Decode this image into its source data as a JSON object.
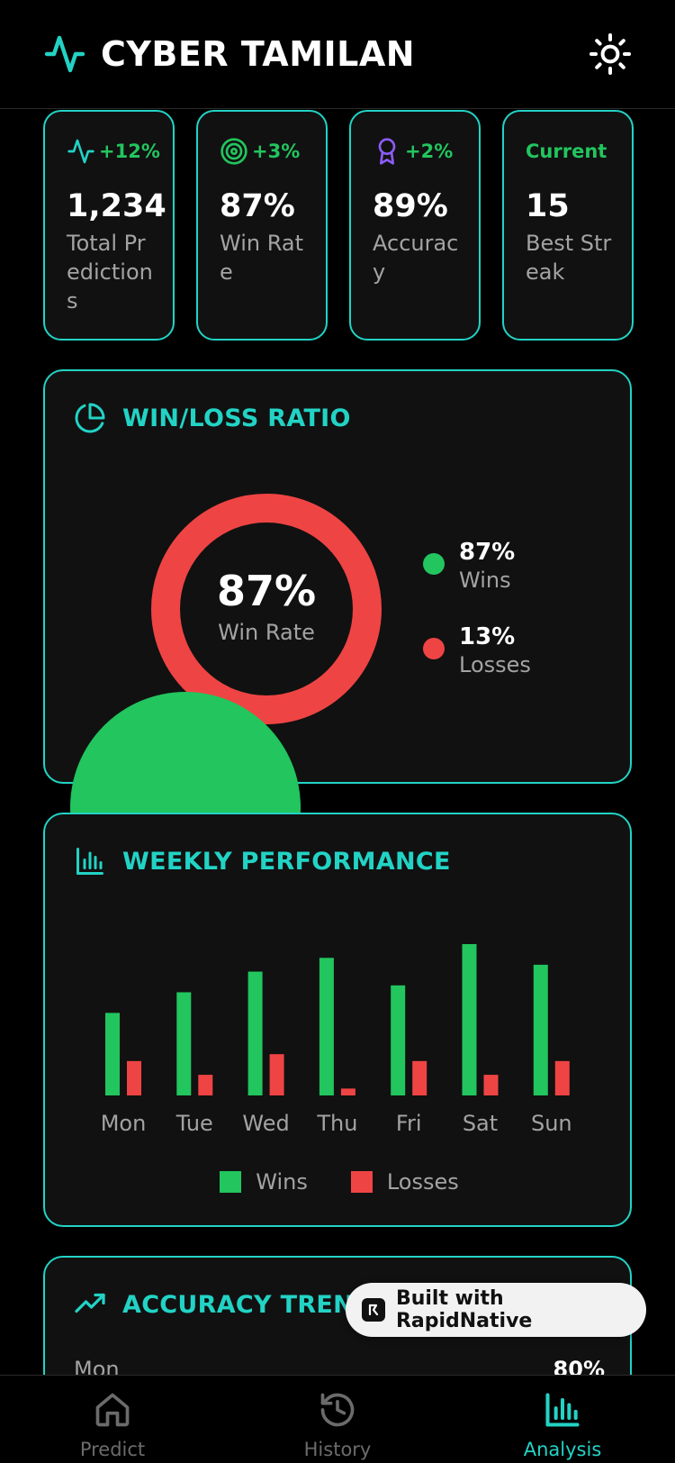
{
  "app": {
    "title": "CYBER TAMILAN"
  },
  "stats": [
    {
      "trend": "+12%",
      "value": "1,234",
      "label": "Total Predictions",
      "icon": "activity-icon"
    },
    {
      "trend": "+3%",
      "value": "87%",
      "label": "Win Rate",
      "icon": "target-icon"
    },
    {
      "trend": "+2%",
      "value": "89%",
      "label": "Accuracy",
      "icon": "award-icon"
    },
    {
      "trend": "Current",
      "value": "15",
      "label": "Best Streak",
      "icon": ""
    }
  ],
  "winloss": {
    "title": "WIN/LOSS RATIO",
    "center_value": "87%",
    "center_label": "Win Rate",
    "wins_pct": "87%",
    "wins_label": "Wins",
    "losses_pct": "13%",
    "losses_label": "Losses",
    "wins_fraction": 0.87,
    "wins_color": "#22c55e",
    "losses_color": "#ef4444"
  },
  "weekly": {
    "title": "WEEKLY PERFORMANCE",
    "legend_wins": "Wins",
    "legend_losses": "Losses"
  },
  "chart_data": {
    "type": "bar",
    "categories": [
      "Mon",
      "Tue",
      "Wed",
      "Thu",
      "Fri",
      "Sat",
      "Sun"
    ],
    "series": [
      {
        "name": "Wins",
        "values": [
          12,
          15,
          18,
          20,
          16,
          22,
          19
        ],
        "color": "#22c55e"
      },
      {
        "name": "Losses",
        "values": [
          5,
          3,
          6,
          1,
          5,
          3,
          5
        ],
        "color": "#ef4444"
      }
    ],
    "ylim": [
      0,
      22
    ]
  },
  "accuracy": {
    "title": "ACCURACY TREND",
    "rows": [
      {
        "day": "Mon",
        "value": "80%"
      }
    ]
  },
  "badge": {
    "text": "Built with RapidNative"
  },
  "tabs": [
    {
      "label": "Predict",
      "icon": "home-icon"
    },
    {
      "label": "History",
      "icon": "history-icon"
    },
    {
      "label": "Analysis",
      "icon": "bar-chart-icon"
    }
  ],
  "colors": {
    "accent": "#22d3c5",
    "green": "#22c55e",
    "red": "#ef4444",
    "purple": "#8b5cf6"
  }
}
